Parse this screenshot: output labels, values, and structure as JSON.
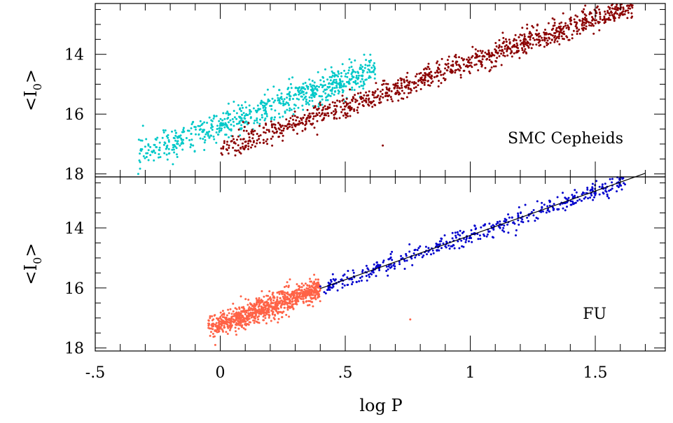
{
  "figure": {
    "x_axis_label": "log P",
    "x_tick_labels": [
      "-.5",
      "0",
      ".5",
      "1",
      "1.5"
    ],
    "y_tick_labels": [
      "14",
      "16",
      "18"
    ]
  },
  "chart_data": [
    {
      "type": "scatter",
      "panel": "top",
      "annotation": "SMC Cepheids",
      "ylabel": "<I0>",
      "xlim": [
        -0.5,
        1.78
      ],
      "ylim": [
        18.1,
        12.3
      ],
      "y_inverted": true,
      "x_ticks": [
        -0.5,
        0,
        0.5,
        1,
        1.5
      ],
      "y_ticks": [
        14,
        16,
        18
      ],
      "grid": false,
      "legend": "none",
      "series": [
        {
          "color": "#00c8c8",
          "approx_count": 700,
          "x_range": [
            -0.33,
            0.62
          ],
          "relation": {
            "slope": -2.95,
            "intercept": 16.35,
            "scatter": 0.25
          },
          "sample_points": [
            [
              -0.3,
              17.6
            ],
            [
              -0.2,
              17.2
            ],
            [
              -0.1,
              17.0
            ],
            [
              0.0,
              16.8
            ],
            [
              0.1,
              16.4
            ],
            [
              0.2,
              16.2
            ],
            [
              0.3,
              15.9
            ],
            [
              0.4,
              15.6
            ],
            [
              0.5,
              15.4
            ],
            [
              0.6,
              15.1
            ]
          ]
        },
        {
          "color": "#8b0000",
          "approx_count": 1100,
          "x_range": [
            0.0,
            1.65
          ],
          "relation": {
            "slope": -2.95,
            "intercept": 17.2,
            "scatter": 0.2
          },
          "sample_points": [
            [
              0.0,
              17.3
            ],
            [
              0.2,
              16.7
            ],
            [
              0.4,
              16.1
            ],
            [
              0.6,
              15.4
            ],
            [
              0.8,
              14.8
            ],
            [
              1.0,
              14.3
            ],
            [
              1.2,
              13.7
            ],
            [
              1.4,
              13.1
            ],
            [
              1.6,
              12.5
            ]
          ],
          "outliers": [
            [
              0.65,
              17.05
            ]
          ]
        }
      ]
    },
    {
      "type": "scatter",
      "panel": "bottom",
      "annotation": "FU",
      "ylabel": "<I0>",
      "xlim": [
        -0.5,
        1.78
      ],
      "ylim": [
        18.1,
        12.3
      ],
      "y_inverted": true,
      "x_ticks": [
        -0.5,
        0,
        0.5,
        1,
        1.5
      ],
      "y_ticks": [
        14,
        16,
        18
      ],
      "grid": false,
      "legend": "none",
      "series": [
        {
          "color": "#ff6347",
          "approx_count": 900,
          "x_range": [
            -0.05,
            0.4
          ],
          "relation": {
            "slope": -2.95,
            "intercept": 17.2,
            "scatter": 0.2
          },
          "sample_points": [
            [
              0.0,
              17.2
            ],
            [
              0.1,
              16.9
            ],
            [
              0.2,
              16.6
            ],
            [
              0.3,
              16.3
            ],
            [
              0.4,
              16.0
            ]
          ],
          "outliers": [
            [
              0.76,
              17.05
            ],
            [
              -0.02,
              17.9
            ]
          ]
        },
        {
          "color": "#0000cd",
          "approx_count": 450,
          "x_range": [
            0.4,
            1.62
          ],
          "relation": {
            "slope": -2.95,
            "intercept": 17.2,
            "scatter": 0.15
          },
          "sample_points": [
            [
              0.4,
              16.0
            ],
            [
              0.6,
              15.4
            ],
            [
              0.8,
              14.8
            ],
            [
              1.0,
              14.3
            ],
            [
              1.2,
              13.7
            ],
            [
              1.4,
              13.1
            ],
            [
              1.6,
              12.5
            ]
          ]
        }
      ],
      "fit_line": {
        "x": [
          0.4,
          1.7
        ],
        "y": [
          16.02,
          12.18
        ],
        "color": "#000000"
      }
    }
  ]
}
